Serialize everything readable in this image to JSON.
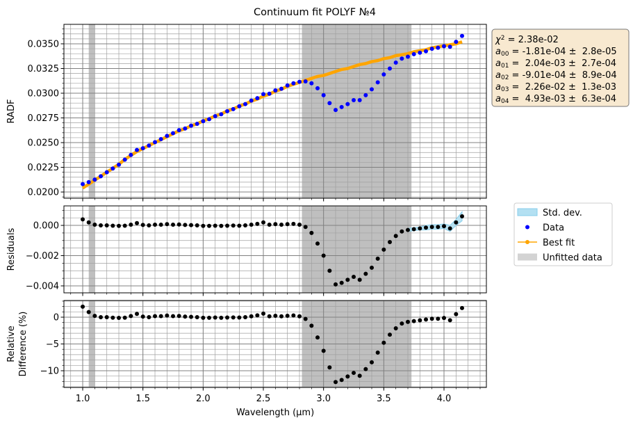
{
  "title": "Continuum fit POLYF №4",
  "x": [
    1,
    1.05,
    1.1,
    1.15,
    1.2,
    1.25,
    1.3,
    1.35,
    1.4,
    1.45,
    1.5,
    1.55,
    1.6,
    1.65,
    1.7,
    1.75,
    1.8,
    1.85,
    1.9,
    1.95,
    2,
    2.05,
    2.1,
    2.15,
    2.2,
    2.25,
    2.3,
    2.35,
    2.4,
    2.45,
    2.5,
    2.55,
    2.6,
    2.65,
    2.7,
    2.75,
    2.8,
    2.85,
    2.9,
    2.95,
    3,
    3.05,
    3.1,
    3.15,
    3.2,
    3.25,
    3.3,
    3.35,
    3.4,
    3.45,
    3.5,
    3.55,
    3.6,
    3.65,
    3.7,
    3.75,
    3.8,
    3.85,
    3.9,
    3.95,
    4,
    4.05,
    4.1,
    4.15
  ],
  "xlim": [
    0.844,
    4.352
  ],
  "xticks": [
    {
      "value": 1,
      "label": "1.0"
    },
    1.5,
    {
      "value": 2,
      "label": "2.0"
    },
    2.5,
    {
      "value": 3,
      "label": "3.0"
    },
    3.5,
    {
      "value": 4,
      "label": "4.0"
    }
  ],
  "xminor_step": 0.1,
  "xlabel": "Wavelength (μm)",
  "grid": true,
  "unfitted_ranges": [
    [
      1.05,
      1.1
    ],
    [
      2.82,
      3.73
    ]
  ],
  "unfitted_color": "#bfbfbf",
  "annotation": [
    {
      "symbol": "χ",
      "sup": "2",
      "text": " = 2.38e-02"
    },
    {
      "symbol": "a",
      "sub": "00",
      "text": " = -1.81e-04 ±  2.8e-05"
    },
    {
      "symbol": "a",
      "sub": "01",
      "text": " =  2.04e-03 ±  2.7e-04"
    },
    {
      "symbol": "a",
      "sub": "02",
      "text": " = -9.01e-04 ±  8.9e-04"
    },
    {
      "symbol": "a",
      "sub": "03",
      "text": " =  2.26e-02 ±  1.3e-03"
    },
    {
      "symbol": "a",
      "sub": "04",
      "text": " =  4.93e-03 ±  6.3e-04"
    }
  ],
  "legend": {
    "position": "right",
    "entries": [
      {
        "name": "Std. dev.",
        "marker": "patch",
        "color": "#b3e0f2"
      },
      {
        "name": "Data",
        "marker": "dot",
        "color": "#0000ff"
      },
      {
        "name": "Best fit",
        "marker": "line",
        "color": "#ffa500"
      },
      {
        "name": "Unfitted data",
        "marker": "patch",
        "color": "#d3d3d3"
      }
    ]
  },
  "chart_data": [
    {
      "type": "scatter",
      "ylabel": [
        "RADF"
      ],
      "ylim": [
        0.01937,
        0.03697
      ],
      "yticks": [
        {
          "value": 0.02,
          "label": "0.0200"
        },
        0.0225,
        {
          "value": 0.025,
          "label": "0.0250"
        },
        0.0275,
        {
          "value": 0.03,
          "label": "0.0300"
        },
        0.0325,
        {
          "value": 0.035,
          "label": "0.0350"
        }
      ],
      "yminor_step": 0.0005,
      "series": [
        {
          "name": "Best fit",
          "style": "line",
          "color": "#ffa500",
          "values": [
            0.0204,
            0.0208,
            0.0212,
            0.0216,
            0.022,
            0.0224,
            0.0228,
            0.0233,
            0.0237,
            0.0241,
            0.0244,
            0.0247,
            0.025,
            0.0253,
            0.0256,
            0.0259,
            0.0262,
            0.0264,
            0.0267,
            0.0269,
            0.0272,
            0.0274,
            0.0277,
            0.0279,
            0.0282,
            0.0284,
            0.0287,
            0.0289,
            0.0292,
            0.0294,
            0.0297,
            0.0299,
            0.0302,
            0.0304,
            0.0307,
            0.0309,
            0.0311,
            0.0313,
            0.0315,
            0.0317,
            0.0318,
            0.032,
            0.0322,
            0.0324,
            0.0325,
            0.0327,
            0.0329,
            0.033,
            0.0332,
            0.0333,
            0.0335,
            0.0336,
            0.0338,
            0.0339,
            0.034,
            0.0342,
            0.0343,
            0.0344,
            0.0346,
            0.0347,
            0.0348,
            0.0349,
            0.035,
            0.0352
          ]
        },
        {
          "name": "Data",
          "style": "markers",
          "color": "#0000ff",
          "values": [
            0.0208,
            0.021,
            0.02125,
            0.0216,
            0.022,
            0.02238,
            0.02277,
            0.02328,
            0.02375,
            0.02425,
            0.02443,
            0.0247,
            0.02505,
            0.02535,
            0.02568,
            0.02595,
            0.02626,
            0.02643,
            0.02672,
            0.0269,
            0.02717,
            0.02737,
            0.02768,
            0.02787,
            0.02818,
            0.02839,
            0.02868,
            0.0289,
            0.02925,
            0.0295,
            0.0299,
            0.02995,
            0.03028,
            0.03045,
            0.03078,
            0.031,
            0.03115,
            0.0312,
            0.031,
            0.0305,
            0.0298,
            0.029,
            0.0283,
            0.0286,
            0.0289,
            0.0293,
            0.0293,
            0.0298,
            0.0304,
            0.0311,
            0.0319,
            0.0325,
            0.0331,
            0.0335,
            0.0337,
            0.03395,
            0.0341,
            0.03425,
            0.0345,
            0.0346,
            0.03475,
            0.0347,
            0.0352,
            0.0358
          ]
        }
      ]
    },
    {
      "type": "scatter",
      "ylabel": [
        "Residuals"
      ],
      "ylim": [
        -0.00446,
        0.00129
      ],
      "yticks": [
        {
          "value": -0.004,
          "label": "−0.004"
        },
        {
          "value": -0.002,
          "label": "−0.002"
        },
        {
          "value": 0,
          "label": "0.000"
        }
      ],
      "yminor_step": 0.0005,
      "band": {
        "name": "Std. dev.",
        "color": "#b3e0f2",
        "x": [
          3.7,
          3.75,
          3.8,
          3.85,
          3.9,
          3.95,
          4,
          4.05,
          4.1,
          4.15
        ],
        "lower": [
          -0.0004,
          -0.00035,
          -0.0003,
          -0.0003,
          -0.00025,
          -0.00025,
          -0.0002,
          -0.0004,
          0,
          0.0003
        ],
        "upper": [
          -0.0002,
          -0.00015,
          -0.0001,
          0,
          5e-05,
          5e-05,
          0.0001,
          0,
          0.0004,
          0.0009
        ]
      },
      "series": [
        {
          "name": "Residuals",
          "style": "markers",
          "color": "#000000",
          "values": [
            0.0004,
            0.0002,
            5e-05,
            0,
            0,
            -2e-05,
            -3e-05,
            -2e-05,
            5e-05,
            0.00015,
            3e-05,
            0,
            5e-05,
            5e-05,
            8e-05,
            5e-05,
            6e-05,
            3e-05,
            2e-05,
            0,
            -3e-05,
            -3e-05,
            -2e-05,
            -3e-05,
            -2e-05,
            -1e-05,
            -2e-05,
            0,
            5e-05,
            0.0001,
            0.0002,
            5e-05,
            8e-05,
            5e-05,
            8e-05,
            0.0001,
            5e-05,
            -0.0001,
            -0.0005,
            -0.0012,
            -0.002,
            -0.003,
            -0.0039,
            -0.0038,
            -0.0036,
            -0.0034,
            -0.0036,
            -0.0032,
            -0.0028,
            -0.0022,
            -0.0016,
            -0.0011,
            -0.0007,
            -0.0004,
            -0.0003,
            -0.00025,
            -0.0002,
            -0.00015,
            -0.0001,
            -0.0001,
            -5e-05,
            -0.0002,
            0.0002,
            0.0006
          ]
        }
      ]
    },
    {
      "type": "scatter",
      "ylabel": [
        "Relative",
        "Difference (%)"
      ],
      "ylim": [
        -13.12,
        3.12
      ],
      "yticks": [
        {
          "value": -10,
          "label": "−10"
        },
        {
          "value": -5,
          "label": "−5"
        },
        0
      ],
      "yminor_step": 1,
      "series": [
        {
          "name": "Relative Difference",
          "style": "markers",
          "color": "#000000",
          "values": [
            1.96,
            0.96,
            0.24,
            0,
            0,
            -0.09,
            -0.13,
            -0.09,
            0.21,
            0.62,
            0.12,
            0,
            0.2,
            0.2,
            0.31,
            0.19,
            0.23,
            0.11,
            0.07,
            0,
            -0.11,
            -0.11,
            -0.07,
            -0.11,
            -0.07,
            -0.04,
            -0.07,
            0,
            0.17,
            0.34,
            0.67,
            0.17,
            0.26,
            0.16,
            0.26,
            0.32,
            0.16,
            -0.32,
            -1.59,
            -3.79,
            -6.29,
            -9.38,
            -12.11,
            -11.73,
            -11.08,
            -10.4,
            -10.94,
            -9.7,
            -8.43,
            -6.61,
            -4.78,
            -3.27,
            -2.07,
            -1.18,
            -0.88,
            -0.73,
            -0.58,
            -0.44,
            -0.29,
            -0.29,
            -0.14,
            -0.57,
            0.57,
            1.7
          ]
        }
      ]
    }
  ]
}
